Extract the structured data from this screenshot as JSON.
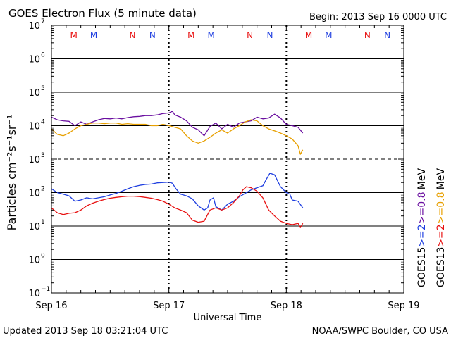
{
  "header": {
    "title": "GOES Electron Flux (5 minute data)",
    "begin": "Begin: 2013 Sep 16 0000 UTC"
  },
  "footer": {
    "updated": "Updated 2013 Sep 18 03:21:04 UTC",
    "credit": "NOAA/SWPC Boulder, CO USA"
  },
  "colors": {
    "purple": "#6a0fa0",
    "orange": "#e8a000",
    "blue": "#1f3fe0",
    "red": "#e81010",
    "grid": "#000000"
  },
  "chart_data": {
    "type": "line",
    "title": "GOES Electron Flux (5 minute data)",
    "xlabel": "Universal Time",
    "ylabel": "Particles cm⁻²s⁻¹sr⁻¹",
    "x_unit": "days since 2013 Sep 16 0000 UTC",
    "xlim": [
      0,
      3
    ],
    "ylim_log10": [
      -1,
      7
    ],
    "x_ticks": [
      {
        "x": 0,
        "label": "Sep 16"
      },
      {
        "x": 1,
        "label": "Sep 17"
      },
      {
        "x": 2,
        "label": "Sep 18"
      },
      {
        "x": 3,
        "label": "Sep 19"
      }
    ],
    "y_ticks": [
      {
        "exp": -1,
        "base": "10",
        "sup": "−1"
      },
      {
        "exp": 0,
        "base": "10",
        "sup": "0"
      },
      {
        "exp": 1,
        "base": "10",
        "sup": "1"
      },
      {
        "exp": 2,
        "base": "10",
        "sup": "2"
      },
      {
        "exp": 3,
        "base": "10",
        "sup": "3"
      },
      {
        "exp": 4,
        "base": "10",
        "sup": "4"
      },
      {
        "exp": 5,
        "base": "10",
        "sup": "5"
      },
      {
        "exp": 6,
        "base": "10",
        "sup": "6"
      },
      {
        "exp": 7,
        "base": "10",
        "sup": "7"
      }
    ],
    "dashed_threshold_exp": 3,
    "markers": [
      {
        "x": 0.19,
        "label": "M",
        "color": "red"
      },
      {
        "x": 0.36,
        "label": "M",
        "color": "blue"
      },
      {
        "x": 0.69,
        "label": "N",
        "color": "red"
      },
      {
        "x": 0.86,
        "label": "N",
        "color": "blue"
      },
      {
        "x": 1.19,
        "label": "M",
        "color": "red"
      },
      {
        "x": 1.36,
        "label": "M",
        "color": "blue"
      },
      {
        "x": 1.69,
        "label": "N",
        "color": "red"
      },
      {
        "x": 1.86,
        "label": "N",
        "color": "blue"
      },
      {
        "x": 2.19,
        "label": "M",
        "color": "red"
      },
      {
        "x": 2.36,
        "label": "M",
        "color": "blue"
      },
      {
        "x": 2.69,
        "label": "N",
        "color": "red"
      },
      {
        "x": 2.86,
        "label": "N",
        "color": "blue"
      }
    ],
    "legend": {
      "left_column": [
        {
          "text": "GOES15",
          "color": "grid"
        },
        {
          "text": ">=2",
          "color": "blue"
        },
        {
          "text": ">=0.8",
          "color": "purple"
        },
        {
          "text": "MeV",
          "color": "grid"
        }
      ],
      "right_column": [
        {
          "text": "GOES13",
          "color": "grid"
        },
        {
          "text": ">=2",
          "color": "red"
        },
        {
          "text": ">=0.8",
          "color": "orange"
        },
        {
          "text": "MeV",
          "color": "grid"
        }
      ]
    },
    "series": [
      {
        "name": "GOES15 >=0.8 MeV",
        "color": "purple",
        "x": [
          0,
          0.05,
          0.1,
          0.15,
          0.2,
          0.25,
          0.3,
          0.35,
          0.4,
          0.45,
          0.5,
          0.55,
          0.6,
          0.65,
          0.7,
          0.75,
          0.8,
          0.85,
          0.9,
          0.95,
          1.0,
          1.03,
          1.05,
          1.1,
          1.15,
          1.2,
          1.25,
          1.3,
          1.35,
          1.4,
          1.45,
          1.5,
          1.55,
          1.6,
          1.65,
          1.7,
          1.75,
          1.8,
          1.85,
          1.9,
          1.95,
          2.0,
          2.05,
          2.1,
          2.14
        ],
        "y": [
          18000,
          15000,
          14000,
          13500,
          10000,
          13000,
          11000,
          13000,
          15000,
          16500,
          16000,
          17000,
          16000,
          17500,
          18500,
          19000,
          20000,
          20000,
          21000,
          23000,
          24000,
          27000,
          21000,
          18000,
          14000,
          9000,
          7500,
          5000,
          9500,
          12000,
          8000,
          11000,
          9000,
          12000,
          13000,
          14000,
          18000,
          16000,
          17000,
          22000,
          17000,
          11000,
          10000,
          9000,
          6000
        ]
      },
      {
        "name": "GOES13 >=0.8 MeV",
        "color": "orange",
        "x": [
          0,
          0.05,
          0.1,
          0.15,
          0.2,
          0.25,
          0.3,
          0.35,
          0.4,
          0.45,
          0.5,
          0.55,
          0.6,
          0.65,
          0.7,
          0.75,
          0.8,
          0.85,
          0.9,
          0.95,
          1.0,
          1.05,
          1.1,
          1.15,
          1.2,
          1.25,
          1.3,
          1.35,
          1.4,
          1.45,
          1.5,
          1.55,
          1.6,
          1.65,
          1.7,
          1.75,
          1.8,
          1.85,
          1.9,
          1.95,
          2.0,
          2.05,
          2.1,
          2.12,
          2.14
        ],
        "y": [
          8000,
          5500,
          5000,
          6000,
          8000,
          10000,
          11000,
          12000,
          12000,
          11500,
          12000,
          12000,
          11000,
          11500,
          11000,
          11000,
          11000,
          10000,
          10000,
          11000,
          10000,
          9000,
          8000,
          5000,
          3500,
          3000,
          3500,
          4500,
          6000,
          7500,
          6000,
          8000,
          10000,
          13000,
          15000,
          14000,
          10000,
          8000,
          7000,
          6000,
          5000,
          4000,
          2500,
          1400,
          1900
        ]
      },
      {
        "name": "GOES15 >=2 MeV",
        "color": "blue",
        "x": [
          0,
          0.05,
          0.1,
          0.15,
          0.2,
          0.25,
          0.3,
          0.35,
          0.4,
          0.45,
          0.5,
          0.55,
          0.6,
          0.65,
          0.7,
          0.75,
          0.8,
          0.85,
          0.9,
          0.95,
          1.0,
          1.03,
          1.06,
          1.1,
          1.15,
          1.2,
          1.25,
          1.3,
          1.33,
          1.35,
          1.38,
          1.4,
          1.45,
          1.5,
          1.55,
          1.6,
          1.65,
          1.7,
          1.75,
          1.8,
          1.83,
          1.86,
          1.9,
          1.95,
          2.0,
          2.03,
          2.05,
          2.1,
          2.14
        ],
        "y": [
          130,
          100,
          90,
          80,
          55,
          60,
          70,
          65,
          70,
          75,
          85,
          95,
          110,
          130,
          150,
          165,
          175,
          180,
          195,
          200,
          205,
          190,
          130,
          90,
          80,
          65,
          40,
          30,
          35,
          60,
          70,
          38,
          30,
          45,
          55,
          75,
          95,
          120,
          140,
          160,
          250,
          380,
          340,
          150,
          100,
          90,
          60,
          55,
          35
        ]
      },
      {
        "name": "GOES13 >=2 MeV",
        "color": "red",
        "x": [
          0,
          0.05,
          0.1,
          0.15,
          0.2,
          0.25,
          0.3,
          0.35,
          0.4,
          0.45,
          0.5,
          0.55,
          0.6,
          0.65,
          0.7,
          0.75,
          0.8,
          0.85,
          0.9,
          0.95,
          1.0,
          1.05,
          1.1,
          1.15,
          1.2,
          1.25,
          1.3,
          1.35,
          1.4,
          1.45,
          1.5,
          1.55,
          1.6,
          1.63,
          1.66,
          1.7,
          1.75,
          1.8,
          1.85,
          1.9,
          1.95,
          2.0,
          2.05,
          2.1,
          2.12,
          2.14
        ],
        "y": [
          35,
          25,
          22,
          24,
          25,
          30,
          40,
          48,
          55,
          62,
          68,
          72,
          75,
          78,
          78,
          76,
          72,
          68,
          62,
          55,
          45,
          35,
          30,
          25,
          15,
          13,
          14,
          30,
          35,
          30,
          35,
          50,
          80,
          120,
          150,
          140,
          110,
          70,
          30,
          20,
          14,
          12,
          11,
          12,
          9,
          12
        ]
      }
    ]
  }
}
